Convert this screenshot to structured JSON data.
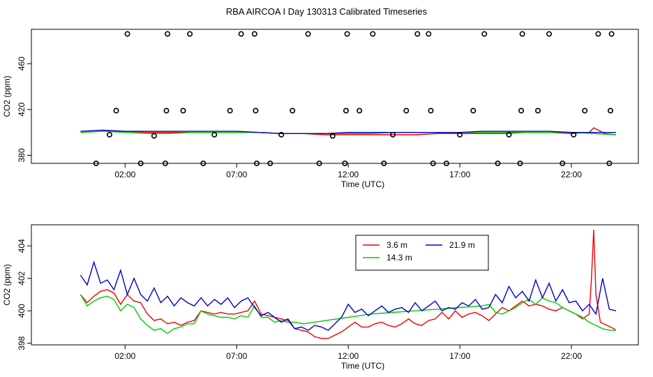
{
  "title": "RBA AIRCOA I  Day 130313  Calibrated Timeseries",
  "colors": {
    "red": "#ee0000",
    "green": "#00cc00",
    "blue": "#0000cc"
  },
  "chart_data": [
    {
      "type": "line",
      "xlabel": "Time (UTC)",
      "ylabel": "CO2 (ppm)",
      "x_unit": "hours UTC",
      "xlim": [
        -2.2,
        25
      ],
      "ylim": [
        373,
        490
      ],
      "xticks": [
        2,
        7,
        12,
        17,
        22
      ],
      "xtick_labels": [
        "02:00",
        "07:00",
        "12:00",
        "17:00",
        "22:00"
      ],
      "yticks": [
        380,
        420,
        460
      ],
      "ytick_labels": [
        "380",
        "420",
        "460"
      ],
      "series": [
        {
          "name": "3.6 m",
          "color": "#ee0000",
          "x": [
            0.0,
            1.0,
            2.0,
            3.0,
            4.0,
            5.0,
            6.0,
            7.0,
            8.0,
            9.0,
            10.0,
            11.0,
            12.0,
            13.0,
            14.0,
            15.0,
            16.0,
            17.0,
            18.0,
            19.0,
            20.0,
            21.0,
            22.0,
            22.8,
            23.0,
            23.5,
            24.0
          ],
          "values": [
            400,
            401,
            401,
            400,
            400,
            400,
            400,
            400,
            400,
            399,
            399,
            398,
            398,
            398,
            398,
            398,
            399,
            399,
            399,
            399,
            400,
            400,
            399,
            400,
            404,
            399,
            398
          ]
        },
        {
          "name": "14.3 m",
          "color": "#00cc00",
          "x": [
            0.0,
            1.0,
            2.0,
            3.0,
            4.0,
            5.0,
            6.0,
            7.0,
            8.0,
            9.0,
            10.0,
            11.0,
            12.0,
            13.0,
            14.0,
            15.0,
            16.0,
            17.0,
            18.0,
            19.0,
            20.0,
            21.0,
            22.0,
            23.0,
            24.0
          ],
          "values": [
            400,
            401,
            400,
            399,
            399,
            400,
            400,
            400,
            400,
            399,
            399,
            399,
            399,
            399,
            400,
            400,
            400,
            400,
            400,
            400,
            400,
            400,
            400,
            399,
            398
          ]
        },
        {
          "name": "21.9 m",
          "color": "#0000cc",
          "x": [
            0.0,
            1.0,
            2.0,
            3.0,
            4.0,
            5.0,
            6.0,
            7.0,
            8.0,
            9.0,
            10.0,
            11.0,
            12.0,
            13.0,
            14.0,
            15.0,
            16.0,
            17.0,
            18.0,
            19.0,
            20.0,
            21.0,
            22.0,
            23.0,
            24.0
          ],
          "values": [
            401,
            402,
            401,
            401,
            401,
            401,
            401,
            401,
            400,
            399,
            399,
            399,
            400,
            400,
            400,
            400,
            400,
            400,
            401,
            401,
            401,
            401,
            400,
            400,
            400
          ]
        }
      ],
      "flag_points": {
        "x": [
          0.7,
          1.3,
          1.6,
          2.1,
          2.7,
          3.3,
          3.8,
          3.85,
          3.9,
          4.6,
          4.9,
          5.5,
          6.0,
          6.7,
          7.2,
          7.8,
          7.85,
          7.9,
          8.5,
          9.0,
          9.5,
          10.2,
          10.7,
          11.3,
          11.85,
          11.9,
          11.95,
          12.5,
          13.1,
          13.6,
          14.0,
          14.6,
          15.1,
          15.6,
          15.7,
          15.8,
          16.4,
          17.0,
          17.6,
          18.1,
          18.7,
          19.2,
          19.7,
          19.75,
          19.8,
          20.5,
          21.0,
          21.6,
          22.1,
          22.6,
          23.2,
          23.7,
          23.75,
          23.8
        ],
        "values": [
          373,
          398,
          419,
          486,
          373,
          397,
          373,
          419,
          486,
          419,
          486,
          373,
          398,
          419,
          486,
          486,
          419,
          373,
          373,
          398,
          419,
          486,
          373,
          397,
          373,
          419,
          486,
          419,
          486,
          373,
          398,
          419,
          486,
          486,
          419,
          373,
          373,
          398,
          419,
          486,
          373,
          398,
          373,
          419,
          486,
          419,
          486,
          373,
          398,
          419,
          486,
          373,
          419,
          486
        ]
      }
    },
    {
      "type": "line",
      "xlabel": "Time (UTC)",
      "ylabel": "CO2 (ppm)",
      "x_unit": "hours UTC",
      "xlim": [
        -2.2,
        25
      ],
      "ylim": [
        397.9,
        405.3
      ],
      "xticks": [
        2,
        7,
        12,
        17,
        22
      ],
      "xtick_labels": [
        "02:00",
        "07:00",
        "12:00",
        "17:00",
        "22:00"
      ],
      "yticks": [
        398,
        400,
        402,
        404
      ],
      "ytick_labels": [
        "398",
        "400",
        "402",
        "404"
      ],
      "legend": {
        "placement": "top-center",
        "entries": [
          "3.6 m",
          "14.3 m",
          "21.9 m"
        ]
      },
      "series": [
        {
          "name": "3.6 m",
          "color": "#ee0000",
          "x": [
            0.0,
            0.3,
            0.6,
            0.9,
            1.2,
            1.5,
            1.8,
            2.1,
            2.4,
            2.7,
            3.0,
            3.3,
            3.6,
            3.9,
            4.2,
            4.5,
            4.8,
            5.1,
            5.4,
            5.7,
            6.0,
            6.3,
            6.6,
            6.9,
            7.2,
            7.5,
            7.8,
            8.1,
            8.4,
            8.7,
            9.0,
            9.3,
            9.6,
            9.9,
            10.2,
            10.5,
            10.8,
            11.1,
            11.4,
            11.7,
            12.0,
            12.3,
            12.6,
            12.9,
            13.2,
            13.5,
            13.8,
            14.1,
            14.4,
            14.7,
            15.0,
            15.3,
            15.6,
            15.9,
            16.2,
            16.5,
            16.8,
            17.1,
            17.4,
            17.7,
            18.0,
            18.3,
            18.6,
            18.9,
            19.2,
            19.5,
            19.8,
            20.1,
            20.4,
            20.7,
            21.0,
            21.3,
            21.6,
            21.9,
            22.2,
            22.5,
            22.8,
            22.9,
            23.0,
            23.1,
            23.3,
            23.6,
            23.9,
            24.0
          ],
          "values": [
            401.0,
            400.5,
            400.9,
            401.2,
            401.3,
            401.1,
            400.4,
            401.0,
            400.6,
            400.5,
            399.8,
            399.4,
            399.5,
            399.2,
            399.3,
            399.1,
            399.3,
            399.4,
            400.0,
            399.9,
            399.8,
            399.9,
            399.8,
            399.8,
            399.9,
            400.0,
            400.6,
            399.8,
            399.7,
            399.6,
            399.5,
            399.4,
            398.9,
            398.8,
            398.7,
            398.4,
            398.3,
            398.3,
            398.5,
            398.7,
            399.0,
            399.3,
            399.0,
            399.0,
            399.2,
            399.3,
            399.1,
            399.0,
            399.2,
            399.5,
            399.2,
            399.1,
            399.4,
            399.5,
            399.9,
            399.5,
            400.0,
            399.6,
            399.8,
            399.9,
            399.7,
            399.4,
            399.8,
            400.2,
            400.0,
            400.3,
            400.6,
            400.3,
            400.4,
            400.3,
            400.1,
            400.0,
            400.2,
            400.0,
            399.8,
            399.5,
            399.8,
            402.0,
            405.0,
            401.0,
            399.3,
            399.1,
            398.9,
            398.8
          ]
        },
        {
          "name": "14.3 m",
          "color": "#00cc00",
          "x": [
            0.0,
            0.3,
            0.6,
            0.9,
            1.2,
            1.5,
            1.8,
            2.1,
            2.4,
            2.7,
            3.0,
            3.3,
            3.6,
            3.9,
            4.2,
            4.5,
            4.8,
            5.1,
            5.4,
            5.7,
            6.0,
            6.3,
            6.6,
            6.9,
            7.2,
            7.5,
            7.8,
            8.1,
            8.4,
            8.7,
            9.0,
            9.3,
            9.6,
            10.0,
            11.0,
            12.0,
            13.0,
            14.0,
            15.0,
            16.0,
            17.0,
            18.0,
            18.3,
            18.6,
            18.9,
            19.2,
            19.5,
            19.8,
            20.1,
            20.4,
            20.7,
            21.0,
            21.3,
            21.6,
            21.9,
            22.2,
            22.5,
            22.8,
            23.1,
            23.4,
            23.7,
            24.0
          ],
          "values": [
            401.0,
            400.3,
            400.6,
            400.8,
            400.9,
            400.7,
            400.0,
            400.4,
            400.2,
            399.5,
            399.1,
            398.8,
            398.9,
            398.6,
            398.9,
            399.0,
            399.2,
            399.2,
            400.0,
            399.8,
            399.7,
            399.6,
            399.6,
            399.5,
            399.7,
            399.6,
            400.3,
            399.6,
            399.6,
            399.3,
            399.4,
            399.3,
            399.3,
            399.2,
            399.4,
            399.6,
            399.8,
            399.9,
            400.0,
            400.1,
            400.2,
            400.3,
            400.4,
            399.9,
            399.8,
            400.0,
            400.2,
            400.5,
            400.7,
            400.4,
            400.8,
            400.6,
            400.5,
            400.2,
            400.0,
            399.8,
            399.6,
            399.3,
            399.1,
            398.9,
            398.8,
            398.8
          ]
        },
        {
          "name": "21.9 m",
          "color": "#0000cc",
          "x": [
            0.0,
            0.3,
            0.6,
            0.9,
            1.2,
            1.5,
            1.8,
            2.1,
            2.4,
            2.7,
            3.0,
            3.3,
            3.6,
            3.9,
            4.2,
            4.5,
            4.8,
            5.1,
            5.4,
            5.7,
            6.0,
            6.3,
            6.6,
            6.9,
            7.2,
            7.5,
            7.8,
            8.1,
            8.4,
            8.7,
            9.0,
            9.3,
            9.6,
            9.9,
            10.2,
            10.5,
            10.8,
            11.1,
            11.4,
            11.7,
            12.0,
            12.3,
            12.6,
            12.9,
            13.2,
            13.5,
            13.8,
            14.1,
            14.4,
            14.7,
            15.0,
            15.3,
            15.6,
            15.9,
            16.2,
            16.5,
            16.8,
            17.1,
            17.4,
            17.7,
            18.0,
            18.3,
            18.6,
            18.9,
            19.2,
            19.5,
            19.8,
            20.1,
            20.4,
            20.7,
            21.0,
            21.3,
            21.6,
            21.9,
            22.2,
            22.5,
            22.8,
            23.1,
            23.4,
            23.7,
            24.0
          ],
          "values": [
            402.2,
            401.6,
            403.0,
            401.7,
            401.9,
            401.3,
            402.5,
            401.0,
            402.0,
            401.0,
            400.6,
            401.4,
            400.5,
            400.9,
            400.3,
            400.8,
            400.5,
            400.3,
            400.8,
            400.3,
            400.7,
            400.4,
            400.8,
            400.2,
            400.6,
            400.8,
            400.2,
            399.7,
            399.9,
            399.6,
            399.3,
            399.5,
            398.9,
            399.0,
            398.8,
            399.1,
            399.0,
            398.8,
            399.2,
            399.6,
            400.4,
            399.9,
            400.1,
            399.7,
            400.0,
            400.3,
            399.9,
            400.1,
            400.2,
            399.9,
            400.5,
            400.0,
            400.3,
            400.6,
            400.0,
            400.2,
            400.1,
            400.5,
            400.3,
            400.7,
            400.1,
            400.2,
            401.0,
            400.5,
            401.5,
            400.8,
            401.2,
            400.6,
            401.9,
            400.8,
            401.7,
            400.6,
            401.3,
            400.5,
            400.6,
            400.0,
            400.4,
            399.8,
            402.0,
            400.1,
            400.0
          ]
        }
      ]
    }
  ]
}
